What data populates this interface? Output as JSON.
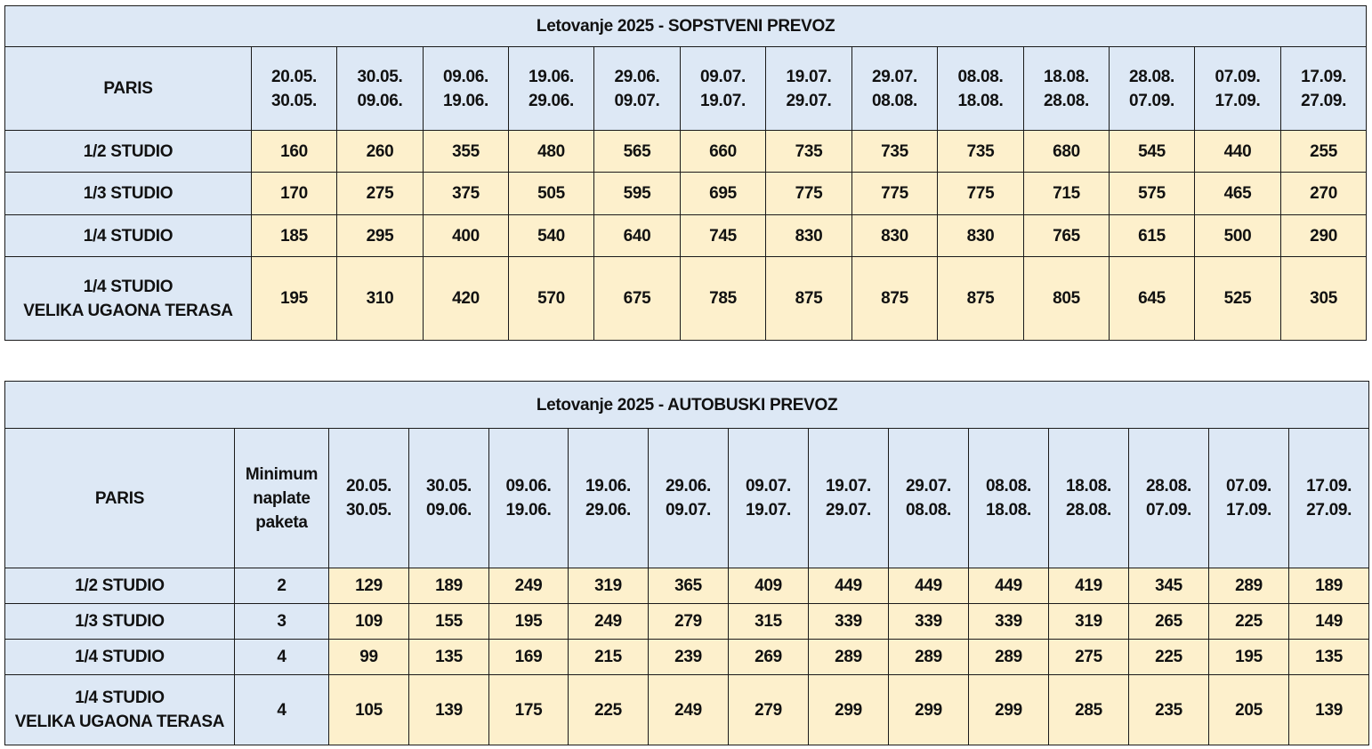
{
  "periods": [
    {
      "from": "20.05.",
      "to": "30.05."
    },
    {
      "from": "30.05.",
      "to": "09.06."
    },
    {
      "from": "09.06.",
      "to": "19.06."
    },
    {
      "from": "19.06.",
      "to": "29.06."
    },
    {
      "from": "29.06.",
      "to": "09.07."
    },
    {
      "from": "09.07.",
      "to": "19.07."
    },
    {
      "from": "19.07.",
      "to": "29.07."
    },
    {
      "from": "29.07.",
      "to": "08.08."
    },
    {
      "from": "08.08.",
      "to": "18.08."
    },
    {
      "from": "18.08.",
      "to": "28.08."
    },
    {
      "from": "28.08.",
      "to": "07.09."
    },
    {
      "from": "07.09.",
      "to": "17.09."
    },
    {
      "from": "17.09.",
      "to": "27.09."
    }
  ],
  "own_transport": {
    "title": "Letovanje 2025 - SOPSTVENI PREVOZ",
    "hotel": "PARIS",
    "rows": [
      {
        "name": [
          "1/2 STUDIO"
        ],
        "prices": [
          "160",
          "260",
          "355",
          "480",
          "565",
          "660",
          "735",
          "735",
          "735",
          "680",
          "545",
          "440",
          "255"
        ]
      },
      {
        "name": [
          "1/3 STUDIO"
        ],
        "prices": [
          "170",
          "275",
          "375",
          "505",
          "595",
          "695",
          "775",
          "775",
          "775",
          "715",
          "575",
          "465",
          "270"
        ]
      },
      {
        "name": [
          "1/4 STUDIO"
        ],
        "prices": [
          "185",
          "295",
          "400",
          "540",
          "640",
          "745",
          "830",
          "830",
          "830",
          "765",
          "615",
          "500",
          "290"
        ]
      },
      {
        "name": [
          "1/4 STUDIO",
          "VELIKA UGAONA TERASA"
        ],
        "prices": [
          "195",
          "310",
          "420",
          "570",
          "675",
          "785",
          "875",
          "875",
          "875",
          "805",
          "645",
          "525",
          "305"
        ]
      }
    ]
  },
  "bus_transport": {
    "title": "Letovanje 2025 - AUTOBUSKI PREVOZ",
    "hotel": "PARIS",
    "min_header": [
      "Minimum",
      "naplate",
      "paketa"
    ],
    "rows": [
      {
        "name": [
          "1/2 STUDIO"
        ],
        "min": "2",
        "prices": [
          "129",
          "189",
          "249",
          "319",
          "365",
          "409",
          "449",
          "449",
          "449",
          "419",
          "345",
          "289",
          "189"
        ]
      },
      {
        "name": [
          "1/3 STUDIO"
        ],
        "min": "3",
        "prices": [
          "109",
          "155",
          "195",
          "249",
          "279",
          "315",
          "339",
          "339",
          "339",
          "319",
          "265",
          "225",
          "149"
        ]
      },
      {
        "name": [
          "1/4 STUDIO"
        ],
        "min": "4",
        "prices": [
          "99",
          "135",
          "169",
          "215",
          "239",
          "269",
          "289",
          "289",
          "289",
          "275",
          "225",
          "195",
          "135"
        ]
      },
      {
        "name": [
          "1/4 STUDIO",
          "VELIKA UGAONA TERASA"
        ],
        "min": "4",
        "prices": [
          "105",
          "139",
          "175",
          "225",
          "249",
          "279",
          "299",
          "299",
          "299",
          "285",
          "235",
          "205",
          "139"
        ]
      }
    ]
  }
}
